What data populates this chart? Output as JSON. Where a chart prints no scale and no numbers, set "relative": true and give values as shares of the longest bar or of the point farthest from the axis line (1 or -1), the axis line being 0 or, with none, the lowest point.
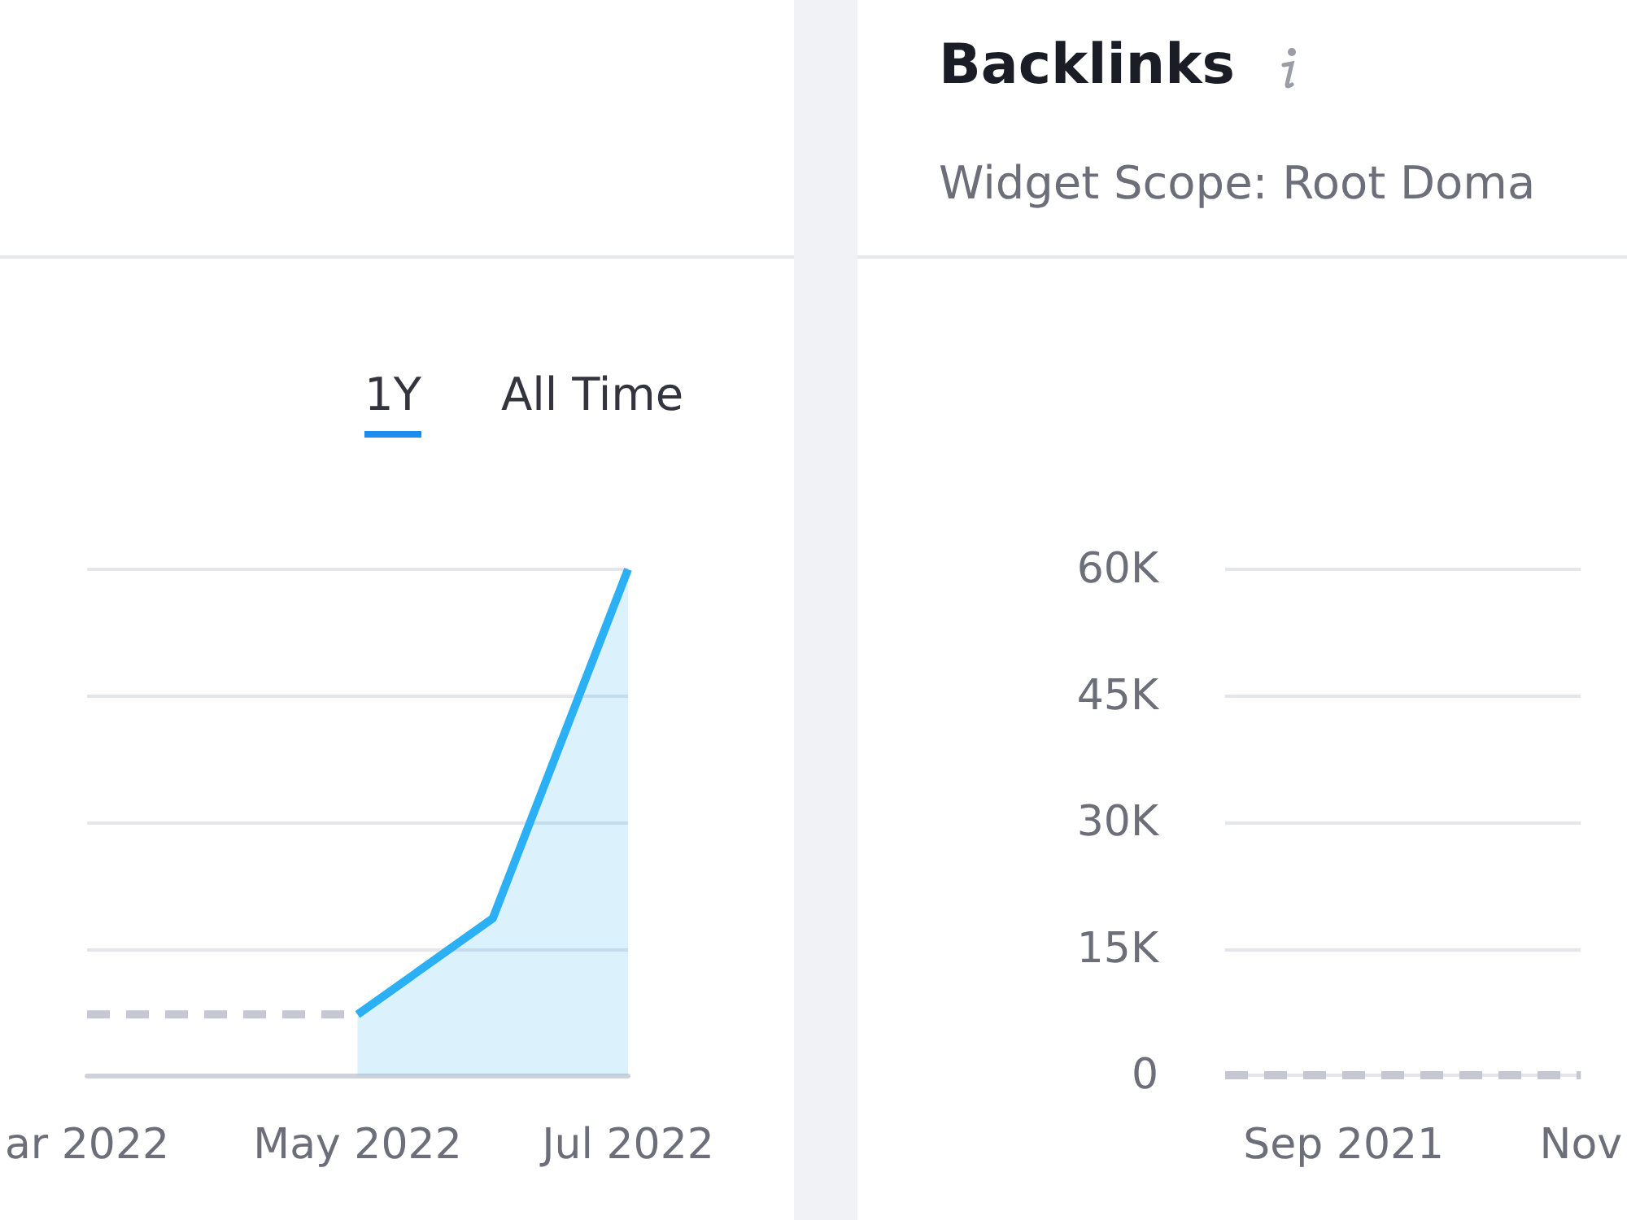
{
  "chart_data": [
    {
      "type": "line",
      "relative": true,
      "categories": [
        "ar 2022",
        null,
        "May 2022",
        null,
        "Jul 2022"
      ],
      "series": [
        {
          "type": "line",
          "line_style": "dashed",
          "color": "#c5c7d2",
          "values": [
            0.12,
            0.12,
            0.12,
            null,
            null
          ]
        },
        {
          "type": "area",
          "color": "#2bb0f5",
          "values": [
            null,
            null,
            0.12,
            0.31,
            1
          ]
        }
      ],
      "grid": "y",
      "marker": "none",
      "annotations": [
        "1Y",
        "All Time"
      ]
    },
    {
      "type": "line",
      "title": "Backlinks",
      "subtitle": "Widget Scope: Root Doma",
      "categories": [
        null,
        "Sep 2021",
        null,
        "Nov"
      ],
      "series": [
        {
          "type": "line",
          "line_style": "dashed",
          "color": "#c5c7d2",
          "values": [
            0,
            0,
            0,
            0
          ]
        }
      ],
      "ylim": [
        0,
        60000
      ],
      "yticks": [
        {
          "value": 0,
          "label": "0"
        },
        {
          "value": 15000,
          "label": "15K"
        },
        {
          "value": 30000,
          "label": "30K"
        },
        {
          "value": 45000,
          "label": "45K"
        },
        {
          "value": 60000,
          "label": "60K"
        }
      ],
      "grid": "y",
      "marker": "none"
    }
  ]
}
